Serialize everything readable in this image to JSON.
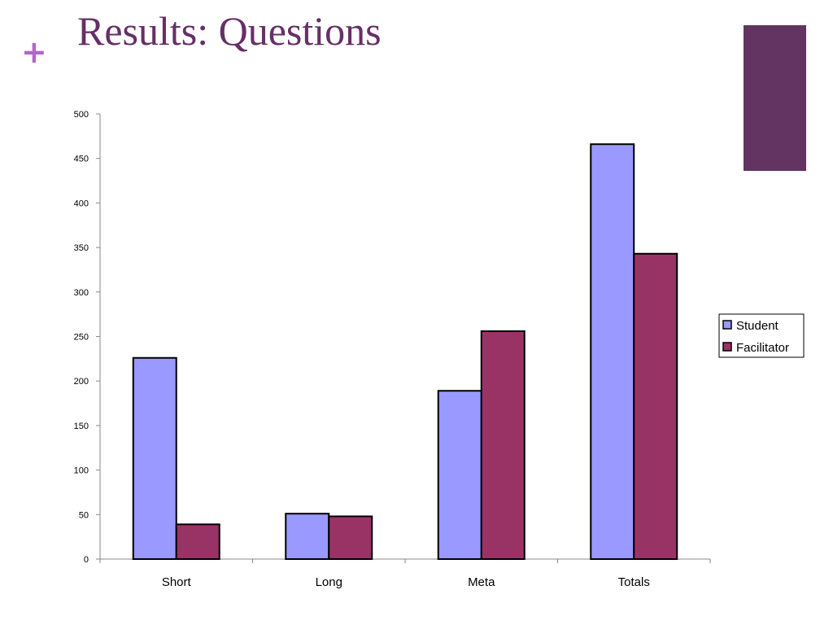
{
  "slide": {
    "plus_glyph": "+",
    "title": "Results: Questions"
  },
  "colors": {
    "title": "#662F66",
    "plus": "#B266C9",
    "accent_block": "#633361",
    "student": "#9999FF",
    "facilitator": "#993366",
    "axis": "#888888",
    "bar_outline": "#000000"
  },
  "chart_data": {
    "type": "bar",
    "categories": [
      "Short",
      "Long",
      "Meta",
      "Totals"
    ],
    "series": [
      {
        "name": "Student",
        "values": [
          226,
          51,
          189,
          466
        ]
      },
      {
        "name": "Facilitator",
        "values": [
          39,
          48,
          256,
          343
        ]
      }
    ],
    "y_ticks": [
      0,
      50,
      100,
      150,
      200,
      250,
      300,
      350,
      400,
      450,
      500
    ],
    "ylim": [
      0,
      500
    ],
    "grid": false,
    "legend_position": "right"
  }
}
